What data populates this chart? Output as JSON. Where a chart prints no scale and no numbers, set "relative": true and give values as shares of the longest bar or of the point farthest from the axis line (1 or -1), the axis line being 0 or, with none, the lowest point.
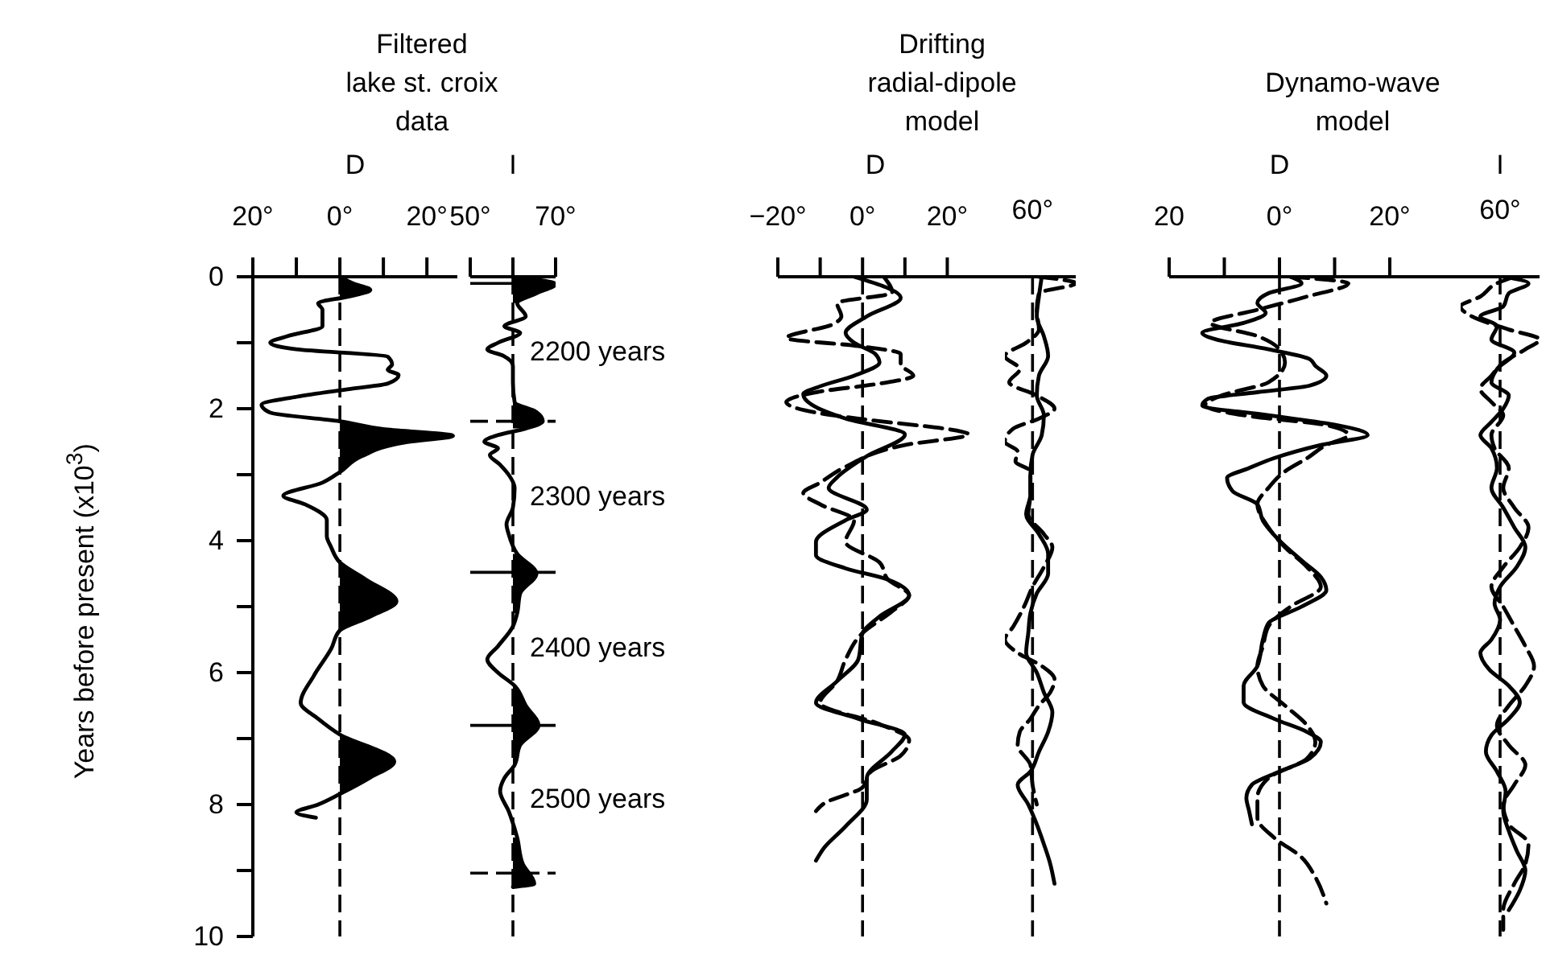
{
  "chart_data": [
    {
      "type": "line",
      "orientation": "horizontal",
      "title": "Filtered\nlake st. croix\ndata",
      "xlabel": "D",
      "ylabel": "Years before present (x10$^{3}$)",
      "xlim": [
        -20,
        27
      ],
      "xticks": [
        {
          "value": -20,
          "label": "20°"
        },
        {
          "value": -10,
          "label": null
        },
        {
          "value": 0,
          "label": "0°"
        },
        {
          "value": 10,
          "label": null
        },
        {
          "value": 20,
          "label": "20°"
        }
      ],
      "ylim": [
        10,
        0
      ],
      "yticks": [
        0,
        {
          "value": 1,
          "label": null
        },
        2,
        {
          "value": 3,
          "label": null
        },
        4,
        {
          "value": 5,
          "label": null
        },
        6,
        {
          "value": 7,
          "label": null
        },
        8,
        {
          "value": 9,
          "label": null
        },
        10
      ],
      "ref_lines": [
        {
          "axis": "x",
          "value": 0,
          "line_style": "dashed",
          "color": "#000000"
        }
      ],
      "series": [
        {
          "type": "area",
          "color": "#000000",
          "x": [
            0,
            0.1,
            0.2,
            0.3,
            0.35,
            2.19,
            2.31,
            2.41,
            2.51,
            2.72,
            2.96,
            3.0,
            4.33,
            4.59,
            4.92,
            5.15,
            5.36,
            5.4,
            6.94,
            7.35,
            7.59,
            7.84
          ],
          "values": [
            0,
            3,
            7,
            2,
            null,
            0,
            10,
            26,
            15,
            5,
            0,
            null,
            0,
            6,
            13,
            7,
            0,
            null,
            0,
            12.5,
            7,
            0
          ]
        },
        {
          "color": "#000000",
          "line_style": "solid",
          "x": [
            0,
            0.1,
            0.2,
            0.3,
            0.4,
            0.5,
            0.75,
            0.9,
            1.0,
            1.1,
            1.21,
            1.33,
            1.41,
            1.49,
            1.62,
            1.7,
            1.82,
            1.94,
            2.06,
            2.19,
            2.31,
            2.41,
            2.51,
            2.72,
            2.96,
            3.12,
            3.32,
            3.45,
            3.69,
            3.93,
            4.1,
            4.33,
            4.59,
            4.92,
            5.15,
            5.36,
            5.64,
            6.05,
            6.46,
            6.7,
            6.94,
            7.35,
            7.59,
            7.84,
            8.0,
            8.12,
            8.2
          ],
          "values": [
            0,
            3,
            7,
            2,
            -5,
            -4,
            -4,
            -12,
            -16,
            -10,
            11,
            12,
            11,
            13.5,
            11,
            2.5,
            -10,
            -18,
            -16,
            0,
            10,
            26,
            15,
            5,
            0,
            -4,
            -13,
            -8,
            -3,
            -3,
            -2,
            0,
            6,
            13,
            7,
            0,
            -2,
            -6,
            -9,
            -5,
            0,
            12.5,
            7,
            0,
            -5,
            -10,
            -5.5
          ]
        }
      ]
    },
    {
      "type": "line",
      "orientation": "horizontal",
      "xlabel": "I",
      "tick_labels": "x",
      "xlim": [
        50,
        70
      ],
      "xticks": [
        {
          "value": 50,
          "label": "50°"
        },
        {
          "value": 60,
          "label": null
        },
        {
          "value": 70,
          "label": "70°"
        }
      ],
      "ylim": [
        10,
        0
      ],
      "ref_lines": [
        {
          "axis": "x",
          "value": 60,
          "line_style": "dashed",
          "color": "#000000"
        },
        {
          "axis": "y",
          "value": 0.1,
          "line_style": "solid",
          "color": "#000000"
        },
        {
          "axis": "y",
          "value": 2.19,
          "line_style": "dashed",
          "color": "#000000"
        },
        {
          "axis": "y",
          "value": 4.48,
          "line_style": "solid",
          "color": "#000000"
        },
        {
          "axis": "y",
          "value": 6.8,
          "line_style": "solid",
          "color": "#000000"
        },
        {
          "axis": "y",
          "value": 9.04,
          "line_style": "dashed",
          "color": "#000000"
        }
      ],
      "annotations": [
        "2200 years",
        "2300 years",
        "2400 years",
        "2500 years"
      ],
      "series": [
        {
          "type": "area",
          "color": "#000000",
          "x": [
            0,
            0.11,
            0.25,
            0.4,
            0.5,
            1.9,
            2.05,
            2.19,
            2.3,
            2.35,
            4.2,
            4.5,
            4.8,
            5.1,
            5.2,
            6.2,
            6.5,
            6.8,
            7.1,
            7.4,
            7.5,
            8.5,
            8.9,
            9.2,
            9.25
          ],
          "values": [
            60,
            70,
            65.5,
            61,
            null,
            60.4,
            65.5,
            67,
            63,
            null,
            61,
            65.5,
            61.7,
            61,
            null,
            60.4,
            63,
            66,
            61.7,
            60.4,
            null,
            61,
            62.3,
            65,
            60
          ]
        },
        {
          "color": "#000000",
          "line_style": "solid",
          "x": [
            0,
            0.11,
            0.25,
            0.4,
            0.6,
            0.75,
            0.85,
            1.0,
            1.1,
            1.2,
            1.35,
            1.6,
            1.9,
            2.05,
            2.19,
            2.3,
            2.4,
            2.5,
            2.6,
            2.7,
            2.85,
            3.0,
            3.2,
            3.5,
            3.75,
            3.9,
            4.2,
            4.5,
            4.8,
            5.1,
            5.3,
            5.6,
            5.8,
            6.0,
            6.2,
            6.5,
            6.8,
            7.1,
            7.4,
            7.6,
            7.8,
            8.1,
            8.5,
            8.9,
            9.2,
            9.25
          ],
          "values": [
            60,
            70,
            65.5,
            61,
            63,
            58,
            61.7,
            56.5,
            54,
            57.8,
            60,
            60,
            60.4,
            65.5,
            67,
            63,
            56.5,
            53.3,
            56.5,
            54.6,
            57,
            59,
            60.4,
            60,
            58.5,
            59,
            61,
            65.5,
            61.7,
            61,
            60,
            56.5,
            54,
            56.5,
            60.4,
            63,
            66,
            61.7,
            60.4,
            58,
            57,
            59,
            61,
            62.3,
            65,
            60
          ]
        }
      ]
    },
    {
      "type": "line",
      "orientation": "horizontal",
      "title": "Drifting\nradial-dipole\nmodel",
      "xlabel": "D",
      "tick_labels": "x",
      "xlim": [
        -20,
        26
      ],
      "xticks": [
        {
          "value": -20,
          "label": "−20°"
        },
        {
          "value": -10,
          "label": null
        },
        {
          "value": 0,
          "label": "0°"
        },
        {
          "value": 10,
          "label": null
        },
        {
          "value": 20,
          "label": "20°"
        }
      ],
      "ylim": [
        10,
        0
      ],
      "ref_lines": [
        {
          "axis": "x",
          "value": 0,
          "line_style": "dashed",
          "color": "#000000"
        }
      ],
      "series": [
        {
          "color": "#000000",
          "line_style": "solid",
          "x": [
            0,
            0.32,
            0.6,
            0.85,
            1.0,
            1.17,
            1.3,
            1.5,
            1.66,
            1.78,
            1.94,
            2.15,
            2.39,
            2.72,
            3.04,
            3.2,
            3.53,
            3.69,
            4.02,
            4.22,
            4.42,
            4.59,
            4.83,
            5.15,
            5.4,
            5.8,
            6.13,
            6.46,
            6.7,
            6.94,
            7.19,
            7.6,
            7.92,
            8.33,
            8.65,
            8.85
          ],
          "values": [
            -2,
            9,
            1,
            -4,
            -2,
            3,
            4,
            -2,
            -10,
            -14,
            -12,
            -4,
            10,
            1,
            -6,
            -8,
            1,
            -4,
            -11,
            -11,
            -4,
            6,
            11,
            4,
            0,
            -1,
            -6,
            -11,
            -1,
            10,
            7,
            1,
            1,
            -4,
            -9,
            -11
          ]
        },
        {
          "color": "#000000",
          "line_style": "dashed",
          "x": [
            0,
            0.24,
            0.4,
            0.6,
            0.72,
            0.93,
            1.05,
            1.17,
            1.33,
            1.5,
            1.62,
            1.74,
            1.9,
            2.07,
            2.15,
            2.39,
            2.55,
            2.88,
            3.12,
            3.28,
            3.45,
            3.69,
            4.02,
            4.33,
            4.59,
            4.83,
            5.07,
            5.4,
            5.8,
            6.13,
            6.46,
            6.78,
            7.02,
            7.26,
            7.5,
            7.74,
            7.98,
            8.1
          ],
          "values": [
            5,
            7,
            -6,
            -5,
            -7,
            -18,
            -1,
            9,
            9,
            12,
            4,
            -10,
            -18,
            -10,
            -1,
            25,
            10,
            -4,
            -10,
            -14,
            -10,
            -2,
            -4,
            4,
            6,
            11,
            7,
            0,
            -4,
            -6,
            -10,
            4,
            11,
            9,
            2,
            0,
            -9,
            -11
          ]
        }
      ]
    },
    {
      "type": "line",
      "orientation": "horizontal",
      "tick_labels": "x",
      "relative": true,
      "annotations": [
        "60°"
      ],
      "ylim": [
        10,
        0
      ],
      "ref_lines": [
        {
          "axis": "x",
          "value": 0.39,
          "line_style": "dashed",
          "color": "#000000"
        }
      ],
      "series": [
        {
          "color": "#000000",
          "line_style": "solid",
          "x": [
            0,
            0.3,
            0.6,
            0.9,
            1.2,
            1.5,
            1.8,
            2.1,
            2.4,
            2.7,
            3.0,
            3.3,
            3.6,
            3.9,
            4.2,
            4.5,
            4.8,
            5.1,
            5.4,
            5.7,
            6.0,
            6.3,
            6.6,
            6.9,
            7.2,
            7.5,
            7.7,
            8.0,
            8.3,
            8.6,
            8.9,
            9.2
          ],
          "values": [
            0.52,
            0.48,
            0.45,
            0.55,
            0.61,
            0.48,
            0.45,
            0.55,
            0.52,
            0.39,
            0.36,
            0.36,
            0.3,
            0.48,
            0.61,
            0.61,
            0.45,
            0.36,
            0.33,
            0.3,
            0.45,
            0.55,
            0.67,
            0.61,
            0.48,
            0.36,
            0.18,
            0.33,
            0.45,
            0.55,
            0.64,
            0.7
          ]
        },
        {
          "color": "#000000",
          "line_style": "dashed",
          "x": [
            0,
            0.1,
            0.25,
            0.5,
            0.8,
            1.0,
            1.2,
            1.4,
            1.6,
            1.8,
            2.0,
            2.15,
            2.3,
            2.5,
            2.65,
            2.8,
            2.95,
            3.3,
            3.6,
            3.9,
            4.1,
            4.4,
            4.7,
            5.0,
            5.3,
            5.5,
            5.7,
            5.9,
            6.1,
            6.3,
            6.5,
            6.7,
            6.9,
            7.1,
            7.4,
            7.7,
            8.0
          ],
          "values": [
            0.48,
            1,
            0.48,
            0.45,
            0.48,
            0.3,
            0,
            0.21,
            0.06,
            0.45,
            0.7,
            0.48,
            0.12,
            0,
            0.18,
            0.15,
            0.36,
            0.36,
            0.33,
            0.55,
            0.67,
            0.55,
            0.39,
            0.27,
            0.12,
            0,
            0.18,
            0.52,
            0.7,
            0.64,
            0.48,
            0.36,
            0.21,
            0.18,
            0.36,
            0.39,
            0.45
          ]
        }
      ]
    },
    {
      "type": "line",
      "orientation": "horizontal",
      "title": "Dynamo-wave\nmodel",
      "xlabel": "D",
      "tick_labels": "x",
      "xlim": [
        -20,
        20
      ],
      "xticks": [
        {
          "value": -20,
          "label": "20"
        },
        {
          "value": -10,
          "label": null
        },
        {
          "value": 0,
          "label": "0°"
        },
        {
          "value": 10,
          "label": null
        },
        {
          "value": 20,
          "label": "20°"
        }
      ],
      "ylim": [
        10,
        0
      ],
      "ref_lines": [
        {
          "axis": "x",
          "value": 0,
          "line_style": "dashed",
          "color": "#000000"
        }
      ],
      "series": [
        {
          "color": "#000000",
          "line_style": "solid",
          "x": [
            0,
            0.1,
            0.25,
            0.4,
            0.55,
            0.7,
            0.85,
            0.95,
            1.1,
            1.25,
            1.35,
            1.5,
            1.65,
            1.75,
            1.85,
            1.95,
            2.1,
            2.25,
            2.4,
            2.55,
            2.75,
            2.9,
            3.05,
            3.25,
            3.45,
            3.7,
            4.0,
            4.3,
            4.55,
            4.75,
            5.0,
            5.25,
            5.5,
            5.9,
            6.2,
            6.45,
            6.7,
            6.9,
            7.05,
            7.3,
            7.5,
            7.7,
            7.9,
            8.1,
            8.3
          ],
          "values": [
            2,
            4,
            -2,
            -4,
            -2.5,
            -6.5,
            -14,
            -11.5,
            -2,
            5.5,
            6.5,
            8.5,
            5.5,
            -4,
            -13,
            -14,
            -2,
            10.5,
            16,
            7.5,
            -1,
            -5.5,
            -9.5,
            -8.5,
            -4,
            -3,
            0,
            4,
            7.5,
            8.5,
            4,
            -2,
            -3,
            -4,
            -6.5,
            -6.5,
            -1,
            5,
            7.5,
            5.5,
            0,
            -5,
            -6,
            -5.5,
            -5
          ]
        },
        {
          "color": "#000000",
          "line_style": "dashed",
          "x": [
            0,
            0.1,
            0.3,
            0.5,
            0.7,
            0.9,
            1.1,
            1.3,
            1.6,
            1.8,
            1.95,
            2.1,
            2.25,
            2.4,
            2.55,
            2.75,
            2.95,
            3.2,
            3.45,
            3.8,
            4.1,
            4.4,
            4.7,
            5.0,
            5.3,
            5.6,
            5.9,
            6.2,
            6.5,
            6.8,
            7.05,
            7.3,
            7.6,
            7.9,
            8.2,
            8.5,
            8.8,
            9.1,
            9.5
          ],
          "values": [
            2,
            12.5,
            5,
            -4,
            -12.5,
            -4,
            0,
            1,
            -2,
            -10.5,
            -13.5,
            -6.5,
            8.5,
            12.5,
            8.5,
            5,
            1,
            -2,
            -4,
            -2,
            1,
            5,
            7.5,
            2,
            -2,
            -3,
            -4,
            -3,
            1,
            5,
            6.5,
            5,
            -2,
            -4,
            -4,
            -1,
            4,
            6.5,
            8.5
          ]
        }
      ]
    },
    {
      "type": "line",
      "orientation": "horizontal",
      "xlabel": "I",
      "tick_labels": "x",
      "relative": true,
      "annotations": [
        "60°"
      ],
      "ylim": [
        10,
        0
      ],
      "ref_lines": [
        {
          "axis": "x",
          "value": 0.5,
          "line_style": "dashed",
          "color": "#000000"
        }
      ],
      "series": [
        {
          "color": "#000000",
          "line_style": "solid",
          "x": [
            0,
            0.1,
            0.25,
            0.45,
            0.6,
            0.75,
            0.95,
            1.15,
            1.4,
            1.6,
            1.8,
            2.0,
            2.2,
            2.4,
            2.6,
            2.9,
            3.2,
            3.5,
            3.8,
            4.1,
            4.4,
            4.7,
            4.95,
            5.2,
            5.5,
            5.7,
            5.95,
            6.2,
            6.45,
            6.7,
            6.95,
            7.2,
            7.5,
            7.8,
            8.1,
            8.4,
            8.7,
            9.0,
            9.3,
            9.6
          ],
          "values": [
            0.54,
            0.86,
            0.61,
            0.54,
            0.25,
            0.46,
            0.39,
            0.68,
            0.46,
            0.39,
            0.61,
            0.54,
            0.39,
            0.25,
            0.39,
            0.46,
            0.39,
            0.54,
            0.68,
            0.82,
            0.71,
            0.5,
            0.43,
            0.5,
            0.39,
            0.25,
            0.36,
            0.61,
            0.75,
            0.61,
            0.39,
            0.32,
            0.46,
            0.57,
            0.54,
            0.61,
            0.71,
            0.82,
            0.75,
            0.61
          ]
        },
        {
          "color": "#000000",
          "line_style": "dashed",
          "x": [
            0,
            0.1,
            0.3,
            0.45,
            0.6,
            0.8,
            0.95,
            1.1,
            1.3,
            1.5,
            1.7,
            1.9,
            2.1,
            2.4,
            2.6,
            2.9,
            3.2,
            3.5,
            3.8,
            4.1,
            4.4,
            4.7,
            5.0,
            5.3,
            5.6,
            5.9,
            6.2,
            6.5,
            6.8,
            7.1,
            7.4,
            7.7,
            8.0,
            8.3,
            8.6,
            8.9,
            9.2,
            9.6,
            9.9
          ],
          "values": [
            0.68,
            0.46,
            0.25,
            0,
            0.14,
            0.61,
            1,
            0.82,
            0.54,
            0.39,
            0.25,
            0.39,
            0.54,
            0.39,
            0.43,
            0.61,
            0.54,
            0.68,
            0.86,
            0.75,
            0.54,
            0.39,
            0.54,
            0.68,
            0.82,
            0.93,
            0.82,
            0.61,
            0.46,
            0.61,
            0.82,
            0.68,
            0.54,
            0.61,
            0.86,
            0.82,
            0.68,
            0.54,
            0.54
          ]
        }
      ]
    }
  ]
}
